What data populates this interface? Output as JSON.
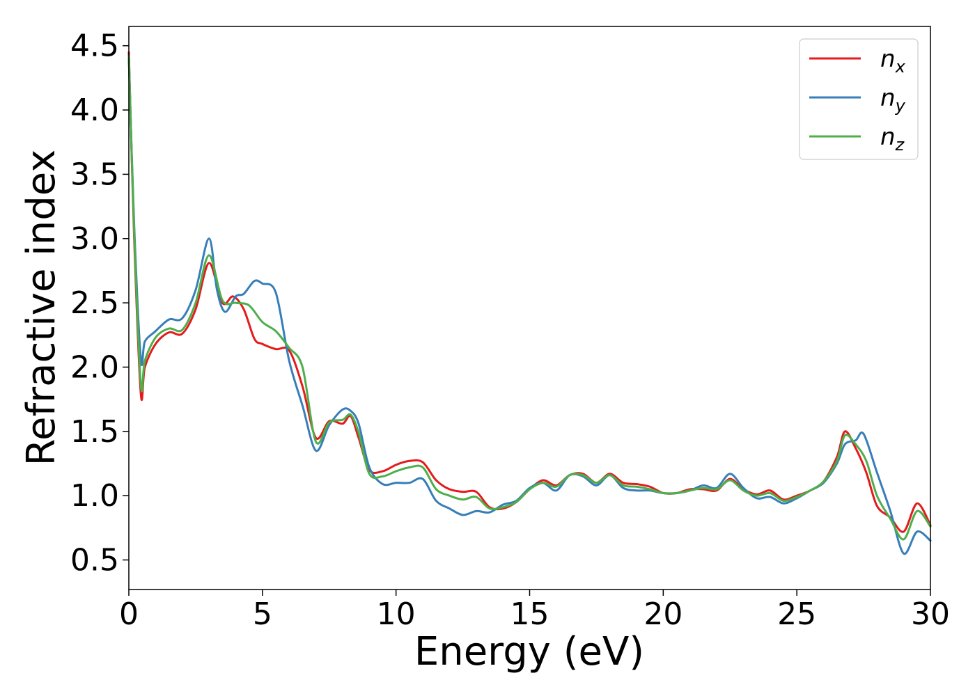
{
  "chart_data": {
    "type": "line",
    "xlabel": "Energy (eV)",
    "ylabel": "Refractive index",
    "xlim": [
      0,
      30
    ],
    "ylim": [
      0.27,
      4.65
    ],
    "xticks": [
      0,
      5,
      10,
      15,
      20,
      25,
      30
    ],
    "xtick_labels": [
      "0",
      "5",
      "10",
      "15",
      "20",
      "25",
      "30"
    ],
    "yticks": [
      0.5,
      1.0,
      1.5,
      2.0,
      2.5,
      3.0,
      3.5,
      4.0,
      4.5
    ],
    "ytick_labels": [
      "0.5",
      "1.0",
      "1.5",
      "2.0",
      "2.5",
      "3.0",
      "3.5",
      "4.0",
      "4.5"
    ],
    "grid": false,
    "legend_position": "top-right",
    "series": [
      {
        "key": "nx",
        "name_base": "n",
        "name_sub": "x",
        "color": "#e41a1c",
        "x": [
          0,
          0.2,
          0.45,
          0.6,
          1.0,
          1.5,
          2.0,
          2.5,
          3.0,
          3.5,
          3.9,
          4.3,
          4.7,
          5.0,
          5.5,
          6.0,
          6.5,
          7.0,
          7.5,
          8.0,
          8.3,
          8.6,
          9.0,
          9.5,
          10.0,
          10.5,
          11.0,
          11.5,
          12.0,
          12.5,
          13.0,
          13.5,
          14.0,
          14.5,
          15.0,
          15.5,
          16.0,
          16.5,
          17.0,
          17.5,
          18.0,
          18.5,
          19.0,
          19.5,
          20.0,
          20.5,
          21.0,
          21.5,
          22.0,
          22.5,
          23.0,
          23.5,
          24.0,
          24.5,
          25.0,
          25.5,
          26.0,
          26.5,
          26.8,
          27.2,
          27.6,
          28.0,
          28.5,
          29.0,
          29.5,
          30.0
        ],
        "y": [
          4.45,
          3.0,
          1.79,
          2.0,
          2.18,
          2.27,
          2.26,
          2.45,
          2.81,
          2.5,
          2.55,
          2.45,
          2.22,
          2.18,
          2.14,
          2.13,
          1.85,
          1.45,
          1.58,
          1.56,
          1.62,
          1.45,
          1.2,
          1.19,
          1.24,
          1.27,
          1.26,
          1.12,
          1.05,
          1.03,
          1.03,
          0.91,
          0.9,
          0.95,
          1.05,
          1.12,
          1.08,
          1.16,
          1.17,
          1.1,
          1.17,
          1.1,
          1.09,
          1.07,
          1.02,
          1.02,
          1.05,
          1.05,
          1.04,
          1.13,
          1.05,
          1.01,
          1.04,
          0.97,
          1.0,
          1.04,
          1.11,
          1.3,
          1.5,
          1.37,
          1.18,
          0.92,
          0.83,
          0.72,
          0.94,
          0.77
        ]
      },
      {
        "key": "ny",
        "name_base": "n",
        "name_sub": "y",
        "color": "#377eb8",
        "x": [
          0,
          0.2,
          0.45,
          0.6,
          1.0,
          1.5,
          2.0,
          2.5,
          3.0,
          3.3,
          3.6,
          4.0,
          4.3,
          4.7,
          5.0,
          5.5,
          6.0,
          6.5,
          7.0,
          7.5,
          8.0,
          8.3,
          8.6,
          9.0,
          9.5,
          10.0,
          10.5,
          11.0,
          11.5,
          12.0,
          12.5,
          13.0,
          13.5,
          14.0,
          14.5,
          15.0,
          15.5,
          16.0,
          16.5,
          17.0,
          17.5,
          18.0,
          18.5,
          19.0,
          19.5,
          20.0,
          20.5,
          21.0,
          21.5,
          22.0,
          22.5,
          23.0,
          23.5,
          24.0,
          24.5,
          25.0,
          25.5,
          26.0,
          26.5,
          26.8,
          27.2,
          27.5,
          28.0,
          28.5,
          29.0,
          29.5,
          30.0
        ],
        "y": [
          4.4,
          3.1,
          2.06,
          2.2,
          2.28,
          2.37,
          2.38,
          2.6,
          3.0,
          2.6,
          2.43,
          2.55,
          2.57,
          2.67,
          2.65,
          2.58,
          2.05,
          1.7,
          1.35,
          1.55,
          1.67,
          1.66,
          1.56,
          1.22,
          1.09,
          1.1,
          1.1,
          1.13,
          0.96,
          0.9,
          0.85,
          0.88,
          0.87,
          0.93,
          0.96,
          1.06,
          1.1,
          1.04,
          1.16,
          1.15,
          1.08,
          1.16,
          1.06,
          1.04,
          1.04,
          1.02,
          1.02,
          1.04,
          1.08,
          1.06,
          1.17,
          1.06,
          0.98,
          0.99,
          0.94,
          0.98,
          1.04,
          1.1,
          1.25,
          1.4,
          1.43,
          1.48,
          1.18,
          0.88,
          0.55,
          0.72,
          0.65
        ]
      },
      {
        "key": "nz",
        "name_base": "n",
        "name_sub": "z",
        "color": "#4daf4a",
        "x": [
          0,
          0.2,
          0.45,
          0.6,
          1.0,
          1.5,
          2.0,
          2.5,
          3.0,
          3.5,
          4.0,
          4.5,
          5.0,
          5.5,
          6.0,
          6.5,
          7.0,
          7.5,
          8.0,
          8.3,
          8.6,
          9.0,
          9.5,
          10.0,
          10.5,
          11.0,
          11.5,
          12.0,
          12.5,
          13.0,
          13.5,
          14.0,
          14.5,
          15.0,
          15.5,
          16.0,
          16.5,
          17.0,
          17.5,
          18.0,
          18.5,
          19.0,
          19.5,
          20.0,
          20.5,
          21.0,
          21.5,
          22.0,
          22.5,
          23.0,
          23.5,
          24.0,
          24.5,
          25.0,
          25.5,
          26.0,
          26.5,
          26.8,
          27.2,
          27.6,
          28.0,
          28.5,
          29.0,
          29.5,
          30.0
        ],
        "y": [
          4.42,
          3.05,
          1.86,
          2.05,
          2.23,
          2.3,
          2.29,
          2.5,
          2.87,
          2.52,
          2.5,
          2.48,
          2.35,
          2.28,
          2.15,
          2.0,
          1.42,
          1.57,
          1.59,
          1.63,
          1.49,
          1.17,
          1.15,
          1.19,
          1.22,
          1.22,
          1.05,
          1.0,
          0.97,
          0.99,
          0.9,
          0.91,
          0.95,
          1.05,
          1.1,
          1.07,
          1.16,
          1.16,
          1.1,
          1.16,
          1.08,
          1.07,
          1.05,
          1.02,
          1.02,
          1.04,
          1.06,
          1.05,
          1.12,
          1.04,
          1.0,
          1.02,
          0.96,
          0.99,
          1.04,
          1.11,
          1.27,
          1.47,
          1.4,
          1.27,
          1.0,
          0.82,
          0.66,
          0.88,
          0.76
        ]
      }
    ]
  }
}
